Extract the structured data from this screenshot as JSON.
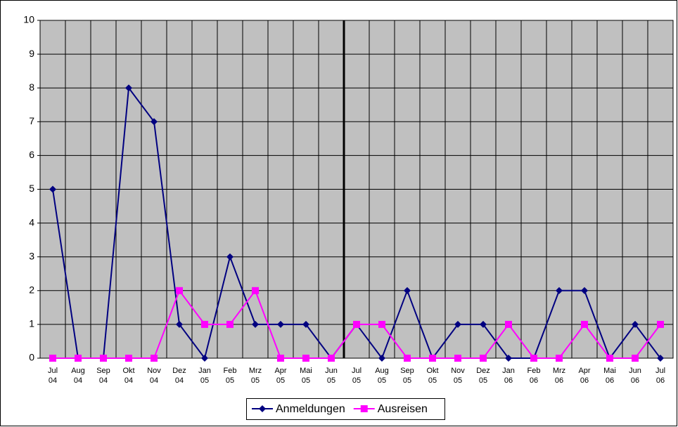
{
  "chart_data": {
    "type": "line",
    "categories": [
      "Jul 04",
      "Aug 04",
      "Sep 04",
      "Okt 04",
      "Nov 04",
      "Dez 04",
      "Jan 05",
      "Feb 05",
      "Mrz 05",
      "Apr 05",
      "Mai 05",
      "Jun 05",
      "Jul 05",
      "Aug 05",
      "Sep 05",
      "Okt 05",
      "Nov 05",
      "Dez 05",
      "Jan 06",
      "Feb 06",
      "Mrz 06",
      "Apr 06",
      "Mai 06",
      "Jun 06",
      "Jul 06"
    ],
    "series": [
      {
        "name": "Anmeldungen",
        "color": "#000080",
        "marker": "diamond",
        "values": [
          5,
          0,
          0,
          8,
          7,
          1,
          0,
          3,
          1,
          1,
          1,
          0,
          1,
          0,
          2,
          0,
          1,
          1,
          0,
          0,
          2,
          2,
          0,
          1,
          0
        ]
      },
      {
        "name": "Ausreisen",
        "color": "#ff00ff",
        "marker": "square",
        "values": [
          0,
          0,
          0,
          0,
          0,
          2,
          1,
          1,
          2,
          0,
          0,
          0,
          1,
          1,
          0,
          0,
          0,
          0,
          1,
          0,
          0,
          1,
          0,
          0,
          1
        ]
      }
    ],
    "ylim": [
      0,
      10
    ],
    "yticks": [
      0,
      1,
      2,
      3,
      4,
      5,
      6,
      7,
      8,
      9,
      10
    ],
    "grid": true,
    "legend": "bottom"
  }
}
